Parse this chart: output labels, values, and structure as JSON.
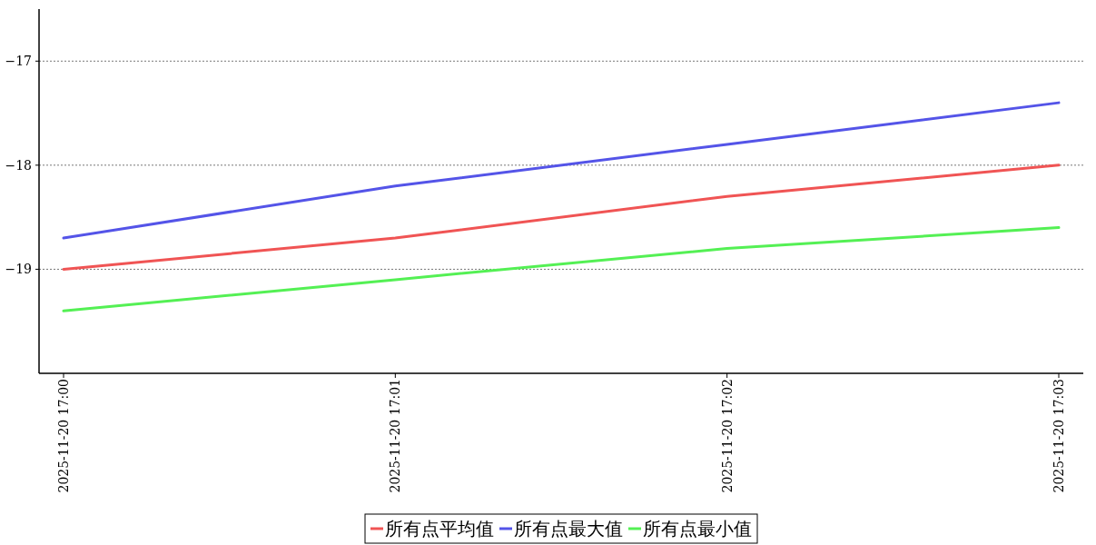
{
  "chart_data": {
    "type": "line",
    "categories": [
      "2025-11-20 17:00",
      "2025-11-20 17:01",
      "2025-11-20 17:02",
      "2025-11-20 17:03"
    ],
    "series": [
      {
        "name": "所有点平均值",
        "color": "#f05454",
        "values": [
          -19,
          -18.7,
          -18.3,
          -18
        ]
      },
      {
        "name": "所有点最大值",
        "color": "#5454e8",
        "values": [
          -18.7,
          -18.2,
          -17.8,
          -17.4
        ]
      },
      {
        "name": "所有点最小值",
        "color": "#54f054",
        "values": [
          -19.4,
          -19.1,
          -18.8,
          -18.6
        ]
      }
    ],
    "ylim": [
      -20,
      -16.5
    ],
    "yticks": [
      {
        "value": -17,
        "label": "−17"
      },
      {
        "value": -18,
        "label": "−18"
      },
      {
        "value": -19,
        "label": "−19"
      }
    ],
    "grid": "y",
    "legend": "bottom",
    "line_style": "solid"
  }
}
